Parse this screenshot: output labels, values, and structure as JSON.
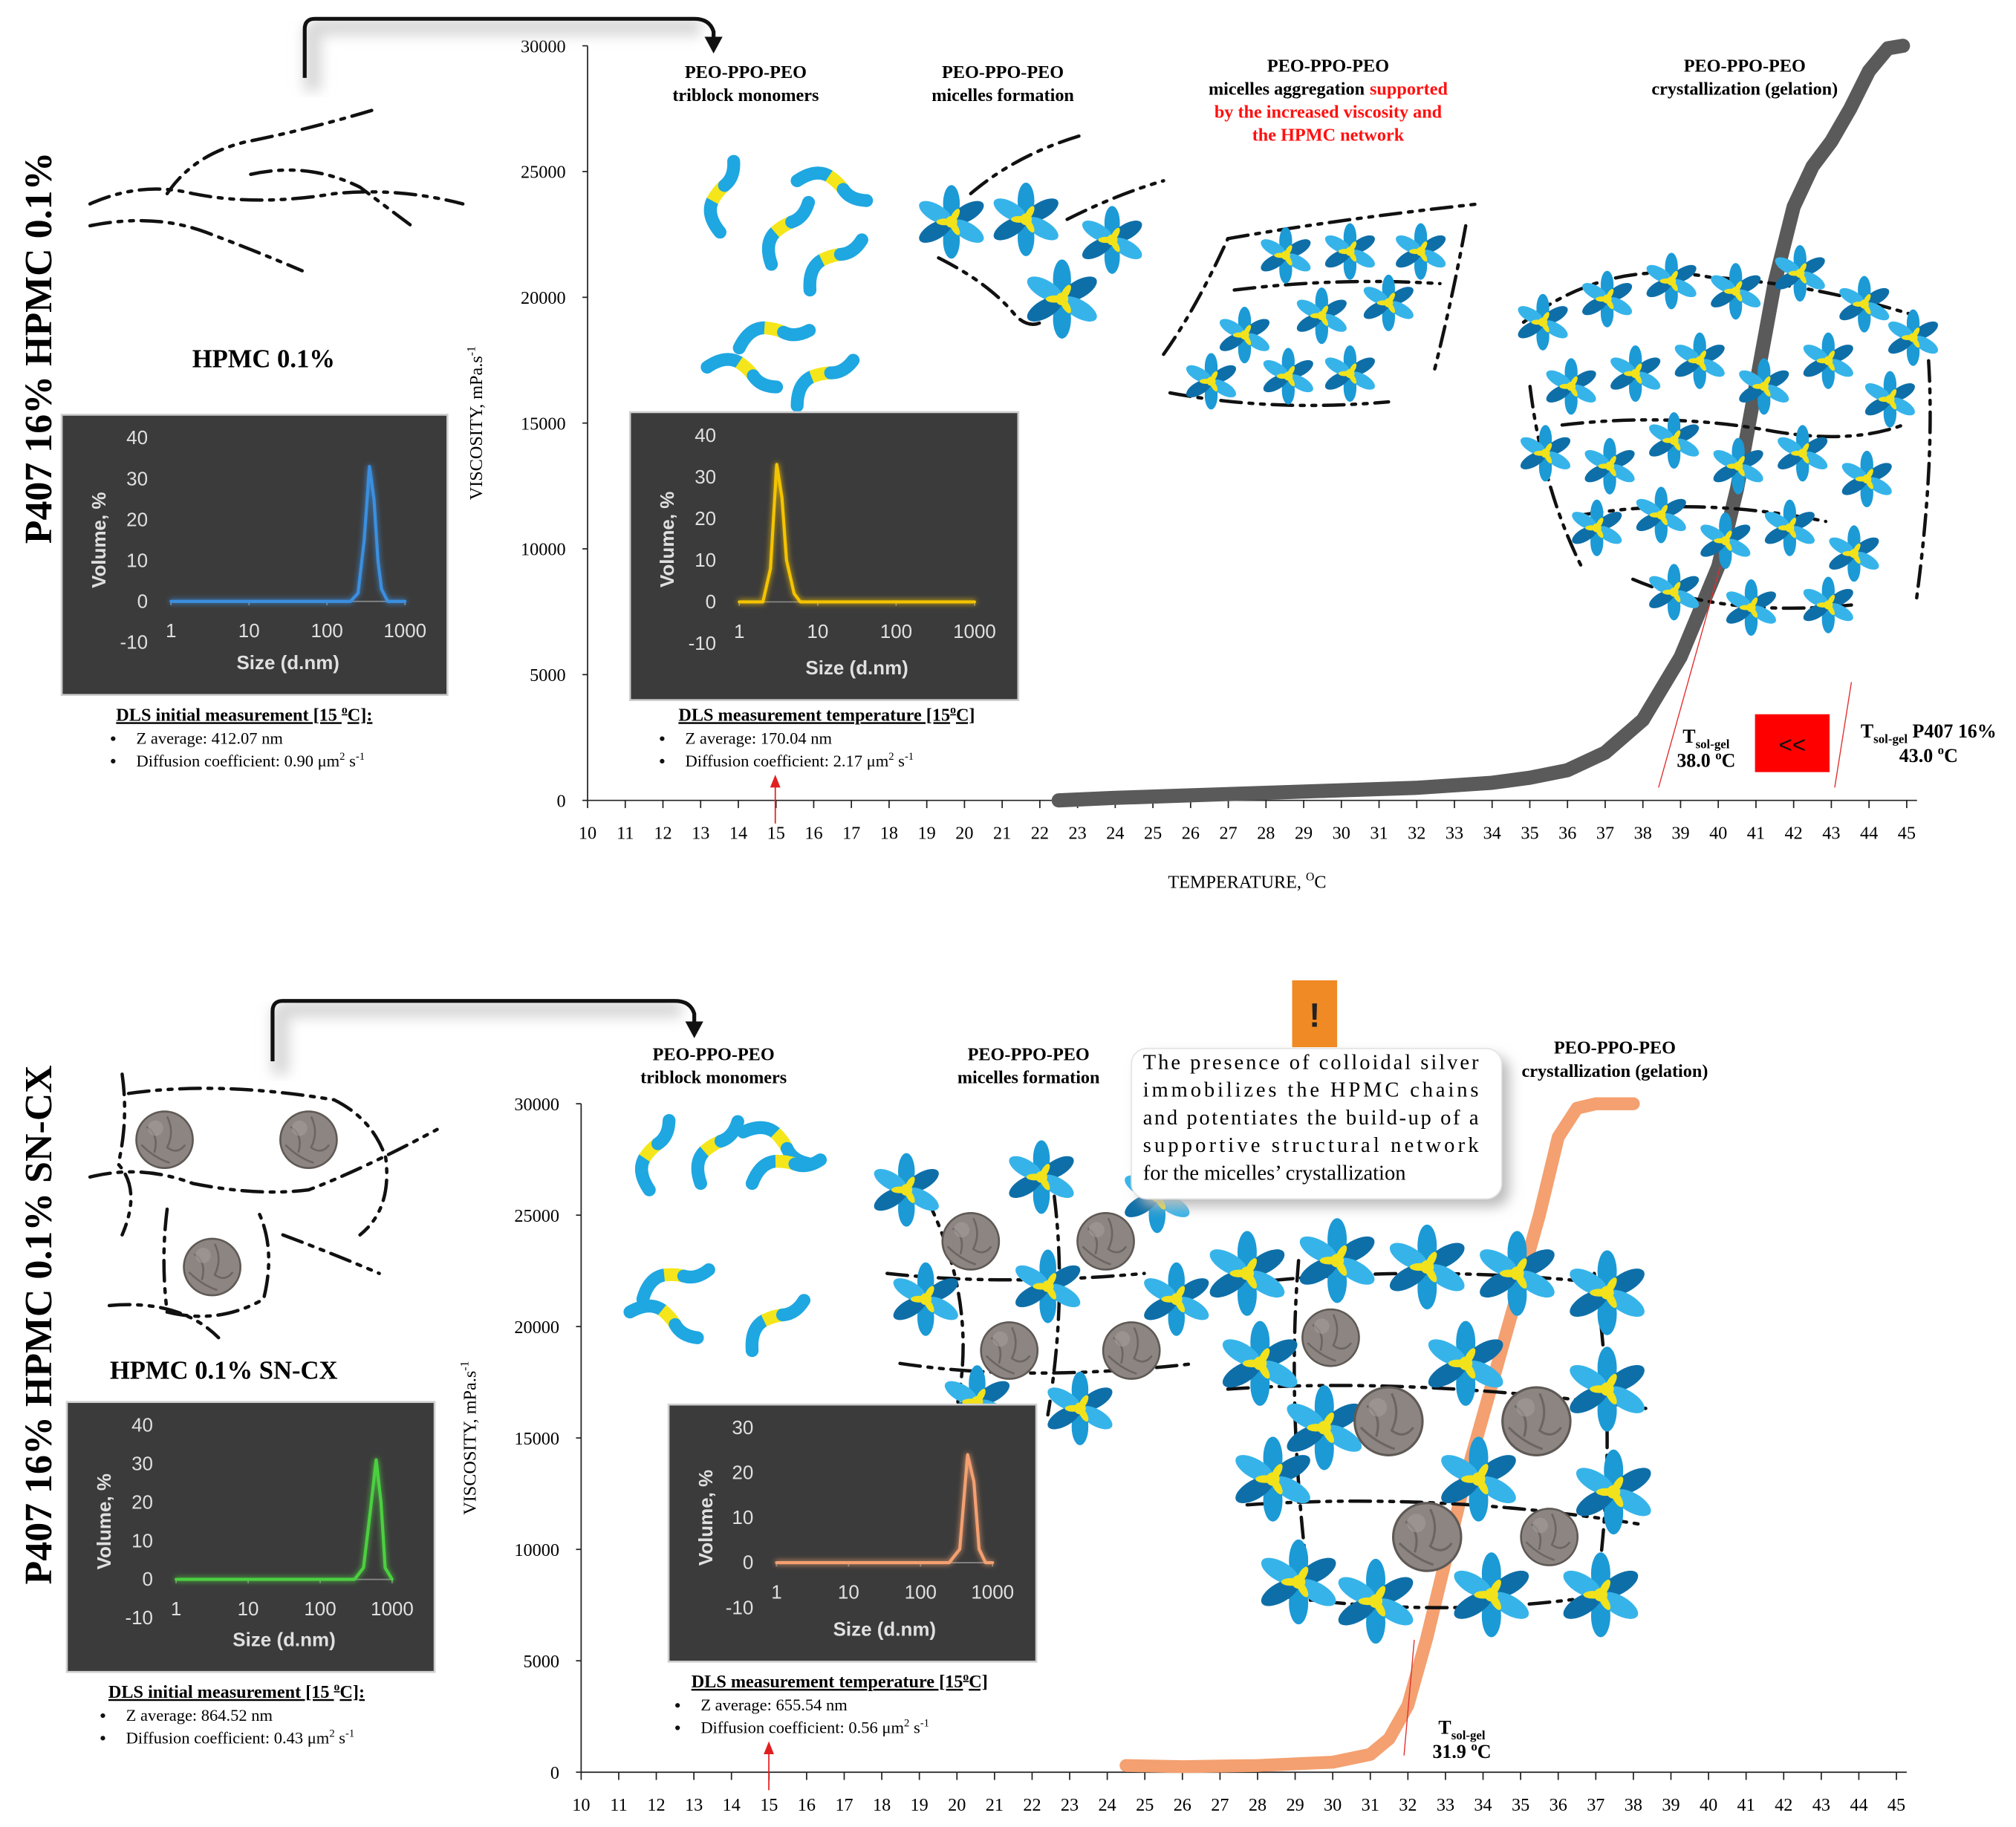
{
  "chart_data": [
    {
      "type": "line",
      "x": [
        22.5,
        24,
        26,
        28,
        30,
        32,
        34,
        35,
        36,
        37,
        38,
        39,
        40,
        40.5,
        41,
        41.5,
        42,
        42.5,
        43,
        43.5,
        44,
        44.5,
        44.9
      ],
      "values": [
        0,
        100,
        200,
        300,
        400,
        500,
        700,
        900,
        1200,
        1900,
        3200,
        5700,
        9300,
        12400,
        16500,
        20600,
        23600,
        25200,
        26200,
        27500,
        29000,
        29900,
        30000
      ],
      "color": "#5a5a5a",
      "xlim": [
        10,
        45
      ],
      "ylim": [
        0,
        30000
      ],
      "xticks": [
        10,
        11,
        12,
        13,
        14,
        15,
        16,
        17,
        18,
        19,
        20,
        21,
        22,
        23,
        24,
        25,
        26,
        27,
        28,
        29,
        30,
        31,
        32,
        33,
        34,
        35,
        36,
        37,
        38,
        39,
        40,
        41,
        42,
        43,
        44,
        45
      ],
      "yticks": [
        0,
        5000,
        10000,
        15000,
        20000,
        25000,
        30000
      ],
      "xlabel": [
        {
          "text": "TEMPERATURE, "
        },
        {
          "text": "O",
          "pos": "sup"
        },
        {
          "text": "C"
        }
      ],
      "ylabel": [
        {
          "text": "VISCOSITY, mPa.s"
        },
        {
          "text": "-1",
          "pos": "sup"
        }
      ]
    },
    {
      "type": "line",
      "log_x": true,
      "x": [
        1,
        10,
        100,
        200,
        250,
        300,
        350,
        400,
        450,
        500,
        600,
        700,
        1000
      ],
      "values": [
        0,
        0,
        0,
        0,
        2,
        15,
        33,
        25,
        10,
        3,
        0,
        0,
        0
      ],
      "color": "#3a8fe0",
      "xlim": [
        1,
        1000
      ],
      "ylim": [
        -10,
        40
      ],
      "xticks": [
        1,
        10,
        100,
        1000
      ],
      "yticks": [
        -10,
        0,
        10,
        20,
        30,
        40
      ],
      "xlabel": "Size (d.nm)",
      "ylabel": "Volume, %"
    },
    {
      "type": "line",
      "log_x": true,
      "x": [
        1,
        2,
        2.5,
        3,
        3.5,
        4,
        5,
        6,
        10,
        100,
        1000
      ],
      "values": [
        0,
        0,
        8,
        33,
        25,
        10,
        2,
        0,
        0,
        0,
        0
      ],
      "color": "#f5c400",
      "xlim": [
        1,
        1000
      ],
      "ylim": [
        -10,
        40
      ],
      "xticks": [
        1,
        10,
        100,
        1000
      ],
      "yticks": [
        -10,
        0,
        10,
        20,
        30,
        40
      ],
      "xlabel": "Size (d.nm)",
      "ylabel": "Volume, %"
    },
    {
      "type": "line",
      "x": [
        24.5,
        26,
        28,
        30,
        31,
        31.5,
        32,
        32.5,
        33,
        33.5,
        34,
        34.5,
        35,
        35.5,
        36,
        36.5,
        37,
        38
      ],
      "values": [
        300,
        250,
        300,
        450,
        800,
        1500,
        3000,
        6000,
        9500,
        13000,
        16000,
        19000,
        22000,
        25000,
        28500,
        29800,
        30000,
        30000
      ],
      "color": "#f4a070",
      "xlim": [
        10,
        45
      ],
      "ylim": [
        0,
        30000
      ],
      "xticks": [
        10,
        11,
        12,
        13,
        14,
        15,
        16,
        17,
        18,
        19,
        20,
        21,
        22,
        23,
        24,
        25,
        26,
        27,
        28,
        29,
        30,
        31,
        32,
        33,
        34,
        35,
        36,
        37,
        38,
        39,
        40,
        41,
        42,
        43,
        44,
        45
      ],
      "yticks": [
        0,
        5000,
        10000,
        15000,
        20000,
        25000,
        30000
      ],
      "ylabel": [
        {
          "text": "VISCOSITY, mPa.s"
        },
        {
          "text": "-1",
          "pos": "sup"
        }
      ]
    },
    {
      "type": "line",
      "log_x": true,
      "x": [
        1,
        10,
        100,
        300,
        400,
        500,
        600,
        700,
        800,
        1000
      ],
      "values": [
        0,
        0,
        0,
        0,
        3,
        18,
        31,
        20,
        3,
        0
      ],
      "color": "#4cd040",
      "xlim": [
        1,
        1000
      ],
      "ylim": [
        -10,
        40
      ],
      "xticks": [
        1,
        10,
        100,
        1000
      ],
      "yticks": [
        -10,
        0,
        10,
        20,
        30,
        40
      ],
      "xlabel": "Size (d.nm)",
      "ylabel": "Volume, %"
    },
    {
      "type": "line",
      "log_x": true,
      "x": [
        1,
        10,
        100,
        250,
        350,
        450,
        550,
        650,
        800,
        1000
      ],
      "values": [
        0,
        0,
        0,
        0,
        3,
        24,
        18,
        3,
        0,
        0
      ],
      "color": "#f4a070",
      "xlim": [
        1,
        1000
      ],
      "ylim": [
        -10,
        30
      ],
      "xticks": [
        1,
        10,
        100,
        1000
      ],
      "yticks": [
        -10,
        0,
        10,
        20,
        30
      ],
      "xlabel": "Size (d.nm)",
      "ylabel": "Volume, %"
    }
  ],
  "panels": [
    {
      "side_label": "P407 16% HPMC 0.1%",
      "sample_label": "HPMC 0.1%",
      "stages": [
        {
          "lines": [
            "PEO-PPO-PEO",
            "triblock monomers"
          ]
        },
        {
          "lines": [
            "PEO-PPO-PEO",
            "micelles formation"
          ]
        },
        {
          "lines": [
            "PEO-PPO-PEO",
            "micelles aggregation"
          ],
          "highlight": [
            "supported",
            "by the increased viscosity and",
            "the HPMC network"
          ],
          "highlight_color": "#ff1010"
        },
        {
          "lines": [
            "PEO-PPO-PEO",
            "crystallization (gelation)"
          ]
        }
      ],
      "notes": [
        {
          "title": [
            {
              "text": "DLS initial measurement [15 "
            },
            {
              "text": "o",
              "pos": "sup"
            },
            {
              "text": "C]:"
            }
          ],
          "items": [
            [
              {
                "text": "Z average: 412.07 nm"
              }
            ],
            [
              {
                "text": "Diffusion coefficient: 0.90 μm"
              },
              {
                "text": "2",
                "pos": "sup"
              },
              {
                "text": " s"
              },
              {
                "text": "-1",
                "pos": "sup"
              }
            ]
          ]
        },
        {
          "title": [
            {
              "text": "DLS measurement temperature [15"
            },
            {
              "text": "o",
              "pos": "sup"
            },
            {
              "text": "C]"
            }
          ],
          "items": [
            [
              {
                "text": "Z average: 170.04 nm"
              }
            ],
            [
              {
                "text": "Diffusion coefficient: 2.17 μm"
              },
              {
                "text": "2",
                "pos": "sup"
              },
              {
                "text": " s"
              },
              {
                "text": "-1",
                "pos": "sup"
              }
            ]
          ]
        }
      ],
      "tsol": [
        {
          "label": [
            {
              "text": "T"
            },
            {
              "text": "sol-gel",
              "pos": "sub"
            }
          ],
          "value": [
            {
              "text": "38.0 "
            },
            {
              "text": "o",
              "pos": "sup"
            },
            {
              "text": "C"
            }
          ]
        },
        {
          "label": [
            {
              "text": "T"
            },
            {
              "text": "sol-gel",
              "pos": "sub"
            },
            {
              "text": " P407 16%"
            }
          ],
          "value": [
            {
              "text": "43.0 "
            },
            {
              "text": "o",
              "pos": "sup"
            },
            {
              "text": "C"
            }
          ]
        }
      ],
      "compare": "<<"
    },
    {
      "side_label": "P407 16% HPMC 0.1% SN-CX",
      "sample_label": "HPMC 0.1% SN-CX",
      "stages": [
        {
          "lines": [
            "PEO-PPO-PEO",
            "triblock monomers"
          ]
        },
        {
          "lines": [
            "PEO-PPO-PEO",
            "micelles formation"
          ]
        },
        {
          "lines": [
            "PEO-PPO-PEO",
            "crystallization (gelation)"
          ]
        }
      ],
      "notes": [
        {
          "title": [
            {
              "text": "DLS initial measurement [15 "
            },
            {
              "text": "o",
              "pos": "sup"
            },
            {
              "text": "C]:"
            }
          ],
          "items": [
            [
              {
                "text": "Z average: 864.52 nm"
              }
            ],
            [
              {
                "text": "Diffusion coefficient: 0.43 μm"
              },
              {
                "text": "2",
                "pos": "sup"
              },
              {
                "text": " s"
              },
              {
                "text": "-1",
                "pos": "sup"
              }
            ]
          ]
        },
        {
          "title": [
            {
              "text": "DLS measurement temperature [15"
            },
            {
              "text": "o",
              "pos": "sup"
            },
            {
              "text": "C]"
            }
          ],
          "items": [
            [
              {
                "text": "Z average: 655.54 nm"
              }
            ],
            [
              {
                "text": "Diffusion coefficient: 0.56 μm"
              },
              {
                "text": "2",
                "pos": "sup"
              },
              {
                "text": " s"
              },
              {
                "text": "-1",
                "pos": "sup"
              }
            ]
          ]
        }
      ],
      "tsol": [
        {
          "label": [
            {
              "text": "T"
            },
            {
              "text": "sol-gel",
              "pos": "sub"
            }
          ],
          "value": [
            {
              "text": "31.9 "
            },
            {
              "text": "o",
              "pos": "sup"
            },
            {
              "text": "C"
            }
          ]
        }
      ],
      "callout": {
        "icon": "!",
        "lines": [
          "The presence of colloidal silver",
          "immobilizes the HPMC chains",
          "and potentiates the build-up of a",
          "supportive structural network",
          "for the micelles’ crystallization"
        ]
      }
    }
  ]
}
